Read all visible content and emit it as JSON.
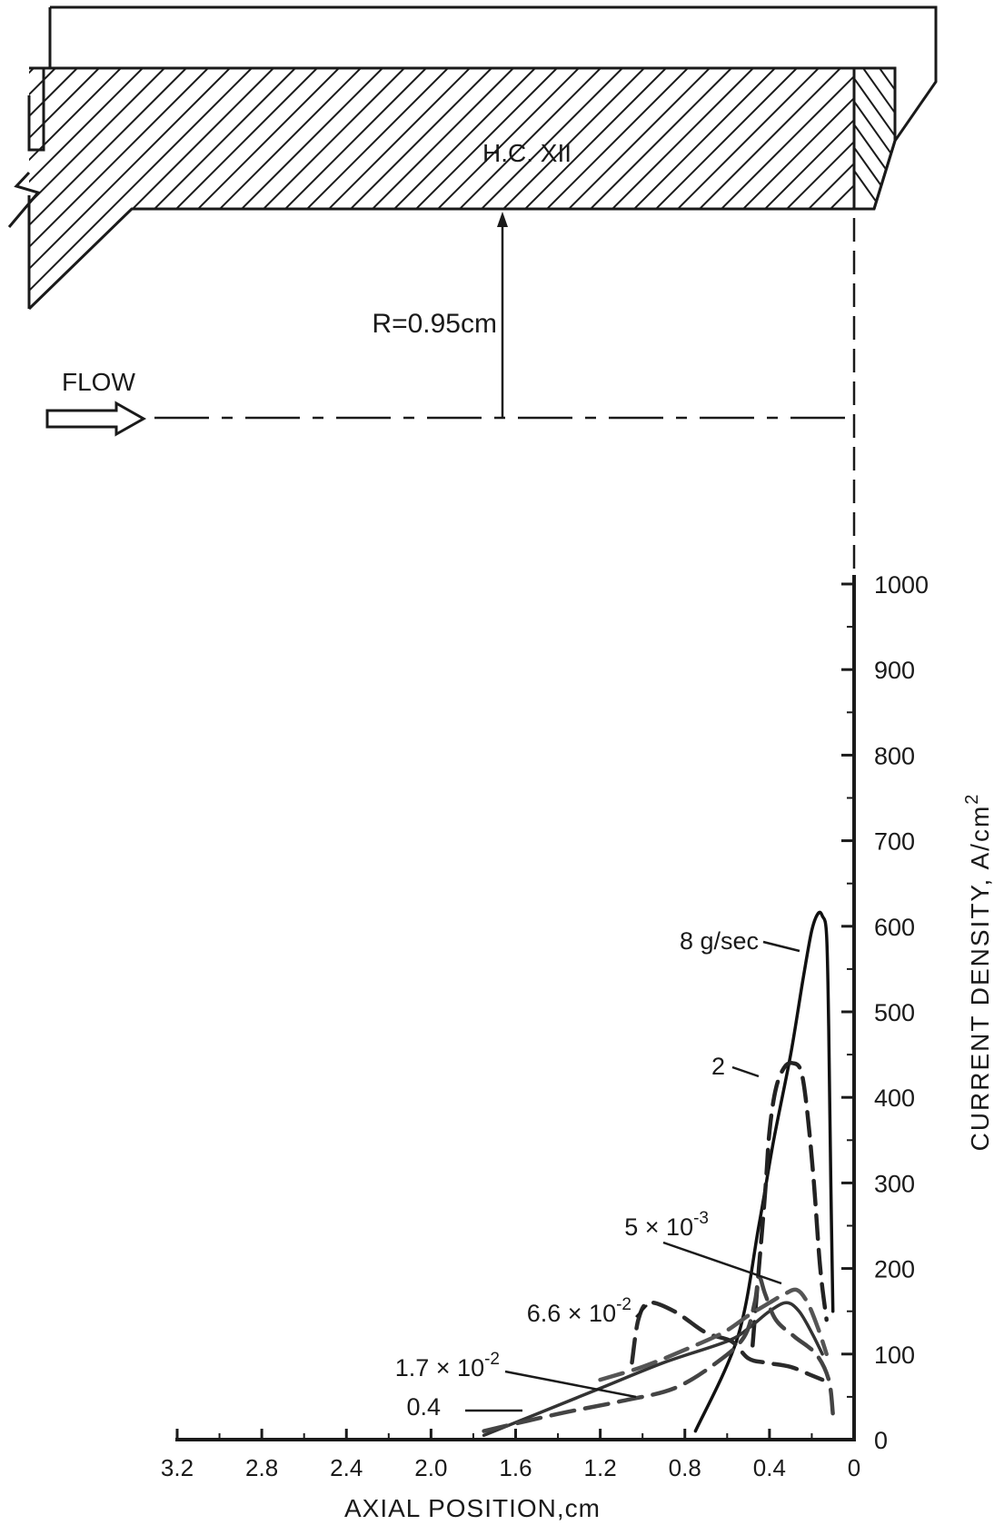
{
  "diagram": {
    "cathode_label": "H.C. XII",
    "radius_label": "R=0.95cm",
    "flow_label": "FLOW"
  },
  "chart_data": {
    "type": "line",
    "xlabel": "AXIAL POSITION,cm",
    "ylabel": "CURRENT DENSITY, A/cm",
    "ylabel_superscript": "2",
    "x_reversed": true,
    "xlim": [
      0,
      3.2
    ],
    "ylim": [
      0,
      1000
    ],
    "x_ticks": [
      "3.2",
      "2.8",
      "2.4",
      "2.0",
      "1.6",
      "1.2",
      "0.8",
      "0.4",
      "0"
    ],
    "y_ticks": [
      "0",
      "100",
      "200",
      "300",
      "400",
      "500",
      "600",
      "700",
      "800",
      "900",
      "1000"
    ],
    "series": [
      {
        "name": "8 g/sec",
        "style": "solid",
        "points": [
          [
            0.75,
            10
          ],
          [
            0.55,
            120
          ],
          [
            0.45,
            250
          ],
          [
            0.38,
            350
          ],
          [
            0.3,
            450
          ],
          [
            0.24,
            540
          ],
          [
            0.2,
            595
          ],
          [
            0.17,
            615
          ],
          [
            0.15,
            612
          ],
          [
            0.13,
            590
          ],
          [
            0.12,
            480
          ],
          [
            0.11,
            300
          ],
          [
            0.1,
            150
          ]
        ]
      },
      {
        "name": "2",
        "style": "dashed",
        "points": [
          [
            0.48,
            110
          ],
          [
            0.45,
            200
          ],
          [
            0.42,
            290
          ],
          [
            0.4,
            360
          ],
          [
            0.37,
            410
          ],
          [
            0.33,
            435
          ],
          [
            0.29,
            440
          ],
          [
            0.25,
            430
          ],
          [
            0.22,
            380
          ],
          [
            0.19,
            300
          ],
          [
            0.16,
            200
          ],
          [
            0.13,
            140
          ]
        ]
      },
      {
        "name": "5 × 10",
        "name_superscript": "-3",
        "style": "solid",
        "points": [
          [
            1.75,
            5
          ],
          [
            1.5,
            30
          ],
          [
            1.2,
            60
          ],
          [
            0.9,
            90
          ],
          [
            0.6,
            115
          ],
          [
            0.5,
            130
          ],
          [
            0.4,
            150
          ],
          [
            0.32,
            160
          ],
          [
            0.26,
            150
          ],
          [
            0.2,
            125
          ],
          [
            0.15,
            100
          ]
        ]
      },
      {
        "name": "6.6 × 10",
        "name_superscript": "-2",
        "style": "dashed",
        "points": [
          [
            1.05,
            90
          ],
          [
            1.02,
            140
          ],
          [
            0.97,
            160
          ],
          [
            0.85,
            150
          ],
          [
            0.7,
            125
          ],
          [
            0.58,
            115
          ],
          [
            0.5,
            95
          ],
          [
            0.42,
            90
          ],
          [
            0.3,
            85
          ],
          [
            0.2,
            75
          ],
          [
            0.15,
            70
          ]
        ]
      },
      {
        "name": "1.7 × 10",
        "name_superscript": "-2",
        "style": "dashed",
        "points": [
          [
            1.2,
            70
          ],
          [
            1.0,
            85
          ],
          [
            0.8,
            105
          ],
          [
            0.62,
            125
          ],
          [
            0.5,
            145
          ],
          [
            0.4,
            160
          ],
          [
            0.33,
            170
          ],
          [
            0.27,
            175
          ],
          [
            0.22,
            160
          ],
          [
            0.17,
            130
          ],
          [
            0.13,
            100
          ]
        ]
      },
      {
        "name": "0.4",
        "style": "dashed",
        "points": [
          [
            1.75,
            10
          ],
          [
            1.4,
            30
          ],
          [
            1.1,
            45
          ],
          [
            0.85,
            60
          ],
          [
            0.65,
            90
          ],
          [
            0.52,
            120
          ],
          [
            0.47,
            160
          ],
          [
            0.45,
            190
          ],
          [
            0.42,
            170
          ],
          [
            0.37,
            140
          ],
          [
            0.28,
            120
          ],
          [
            0.18,
            100
          ],
          [
            0.12,
            70
          ],
          [
            0.1,
            30
          ]
        ]
      }
    ]
  }
}
